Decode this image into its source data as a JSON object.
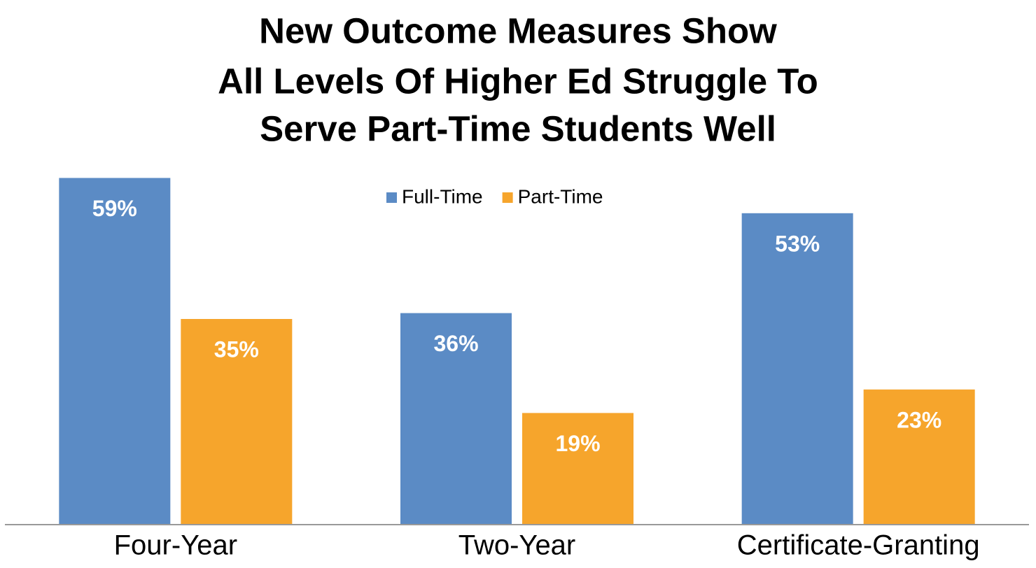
{
  "chart_data": {
    "type": "bar",
    "title": [
      "New Outcome Measures Show",
      "All Levels Of Higher Ed Struggle To",
      "Serve Part-Time Students Well"
    ],
    "categories": [
      "Four-Year",
      "Two-Year",
      "Certificate-Granting"
    ],
    "series": [
      {
        "name": "Full-Time",
        "color": "#5b8bc5",
        "values": [
          59,
          36,
          53
        ],
        "value_labels": [
          "59%",
          "36%",
          "53%"
        ]
      },
      {
        "name": "Part-Time",
        "color": "#f6a52c",
        "values": [
          35,
          19,
          23
        ],
        "value_labels": [
          "35%",
          "19%",
          "23%"
        ]
      }
    ],
    "ylim": [
      0,
      60
    ],
    "legend": "top"
  }
}
